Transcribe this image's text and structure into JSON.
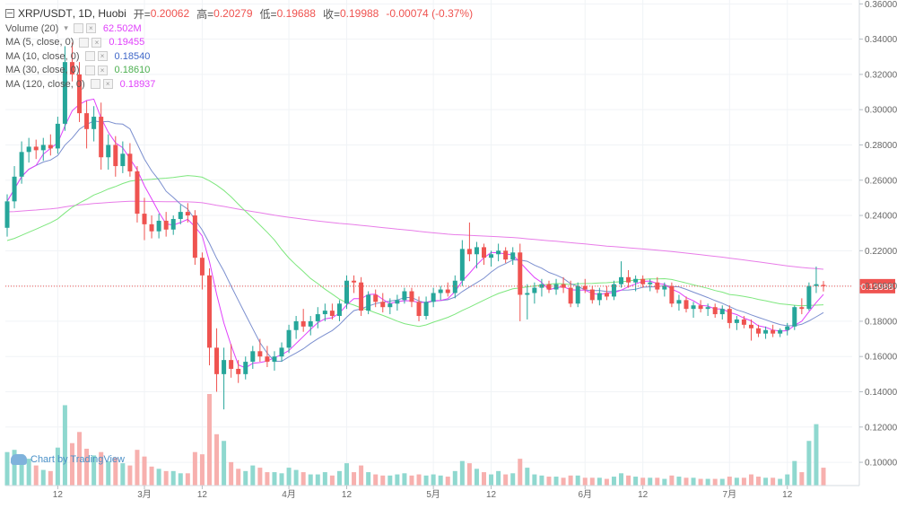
{
  "header": {
    "symbol": "XRP/USDT",
    "interval": "1D",
    "exchange": "Huobi",
    "open_label": "开=",
    "open": "0.20062",
    "high_label": "高=",
    "high": "0.20279",
    "low_label": "低=",
    "low": "0.19688",
    "close_label": "收=",
    "close": "0.19988",
    "change": "-0.00074 (-0.37%)"
  },
  "indicators": [
    {
      "label": "Volume (20)",
      "value": "62.502M",
      "color": "#e040fb"
    },
    {
      "label": "MA (5, close, 0)",
      "value": "0.19455",
      "color": "#e040fb"
    },
    {
      "label": "MA (10, close, 0)",
      "value": "0.18540",
      "color": "#3f67c8"
    },
    {
      "label": "MA (30, close, 0)",
      "value": "0.18610",
      "color": "#4caf50"
    },
    {
      "label": "MA (120, close, 0)",
      "value": "0.18937",
      "color": "#e040fb"
    }
  ],
  "watermark": "Chart by TradingView",
  "price_tag": "0.19988",
  "chart_data": {
    "type": "candlestick",
    "y_ticks": [
      "0.36000",
      "0.34000",
      "0.32000",
      "0.30000",
      "0.28000",
      "0.26000",
      "0.24000",
      "0.22000",
      "0.20000",
      "0.18000",
      "0.16000",
      "0.14000",
      "0.12000",
      "0.10000"
    ],
    "ylim": [
      0.0868,
      0.3622
    ],
    "x_ticks": [
      {
        "label": "12",
        "index": 7
      },
      {
        "label": "3月",
        "index": 19
      },
      {
        "label": "12",
        "index": 27
      },
      {
        "label": "4月",
        "index": 39
      },
      {
        "label": "12",
        "index": 47
      },
      {
        "label": "5月",
        "index": 59
      },
      {
        "label": "12",
        "index": 67
      },
      {
        "label": "6月",
        "index": 80
      },
      {
        "label": "12",
        "index": 88
      },
      {
        "label": "7月",
        "index": 100
      },
      {
        "label": "12",
        "index": 108
      }
    ],
    "colors": {
      "up": "#26a69a",
      "down": "#ef5350",
      "up_volume": "#8fd8cf",
      "down_volume": "#f7b0ae",
      "ma5": "#e040fb",
      "ma10": "#7b8fcf",
      "ma30": "#7ee77e",
      "ma120": "#e87de8"
    },
    "last_price": 0.19988,
    "candles": [
      {
        "o": 0.233,
        "h": 0.252,
        "l": 0.228,
        "c": 0.248,
        "v": 30
      },
      {
        "o": 0.248,
        "h": 0.268,
        "l": 0.244,
        "c": 0.262,
        "v": 32
      },
      {
        "o": 0.262,
        "h": 0.282,
        "l": 0.258,
        "c": 0.276,
        "v": 28
      },
      {
        "o": 0.276,
        "h": 0.284,
        "l": 0.27,
        "c": 0.279,
        "v": 24
      },
      {
        "o": 0.279,
        "h": 0.283,
        "l": 0.272,
        "c": 0.277,
        "v": 18
      },
      {
        "o": 0.277,
        "h": 0.284,
        "l": 0.271,
        "c": 0.28,
        "v": 14
      },
      {
        "o": 0.28,
        "h": 0.286,
        "l": 0.274,
        "c": 0.278,
        "v": 13
      },
      {
        "o": 0.278,
        "h": 0.296,
        "l": 0.275,
        "c": 0.292,
        "v": 34
      },
      {
        "o": 0.292,
        "h": 0.336,
        "l": 0.288,
        "c": 0.327,
        "v": 72
      },
      {
        "o": 0.327,
        "h": 0.338,
        "l": 0.316,
        "c": 0.32,
        "v": 38
      },
      {
        "o": 0.32,
        "h": 0.327,
        "l": 0.293,
        "c": 0.298,
        "v": 48
      },
      {
        "o": 0.298,
        "h": 0.305,
        "l": 0.278,
        "c": 0.289,
        "v": 33
      },
      {
        "o": 0.289,
        "h": 0.302,
        "l": 0.282,
        "c": 0.296,
        "v": 27
      },
      {
        "o": 0.296,
        "h": 0.304,
        "l": 0.266,
        "c": 0.273,
        "v": 30
      },
      {
        "o": 0.273,
        "h": 0.286,
        "l": 0.266,
        "c": 0.28,
        "v": 22
      },
      {
        "o": 0.28,
        "h": 0.285,
        "l": 0.262,
        "c": 0.268,
        "v": 25
      },
      {
        "o": 0.268,
        "h": 0.282,
        "l": 0.264,
        "c": 0.275,
        "v": 20
      },
      {
        "o": 0.275,
        "h": 0.281,
        "l": 0.262,
        "c": 0.265,
        "v": 18
      },
      {
        "o": 0.265,
        "h": 0.268,
        "l": 0.236,
        "c": 0.241,
        "v": 32
      },
      {
        "o": 0.241,
        "h": 0.25,
        "l": 0.226,
        "c": 0.235,
        "v": 26
      },
      {
        "o": 0.235,
        "h": 0.24,
        "l": 0.227,
        "c": 0.231,
        "v": 17
      },
      {
        "o": 0.231,
        "h": 0.241,
        "l": 0.227,
        "c": 0.237,
        "v": 15
      },
      {
        "o": 0.237,
        "h": 0.242,
        "l": 0.228,
        "c": 0.232,
        "v": 13
      },
      {
        "o": 0.232,
        "h": 0.24,
        "l": 0.229,
        "c": 0.238,
        "v": 13
      },
      {
        "o": 0.238,
        "h": 0.246,
        "l": 0.235,
        "c": 0.242,
        "v": 11
      },
      {
        "o": 0.242,
        "h": 0.247,
        "l": 0.236,
        "c": 0.24,
        "v": 11
      },
      {
        "o": 0.24,
        "h": 0.243,
        "l": 0.212,
        "c": 0.216,
        "v": 30
      },
      {
        "o": 0.216,
        "h": 0.219,
        "l": 0.198,
        "c": 0.206,
        "v": 28
      },
      {
        "o": 0.206,
        "h": 0.21,
        "l": 0.155,
        "c": 0.165,
        "v": 82
      },
      {
        "o": 0.165,
        "h": 0.176,
        "l": 0.14,
        "c": 0.15,
        "v": 46
      },
      {
        "o": 0.15,
        "h": 0.165,
        "l": 0.13,
        "c": 0.158,
        "v": 40
      },
      {
        "o": 0.158,
        "h": 0.167,
        "l": 0.148,
        "c": 0.153,
        "v": 21
      },
      {
        "o": 0.153,
        "h": 0.158,
        "l": 0.145,
        "c": 0.15,
        "v": 15
      },
      {
        "o": 0.15,
        "h": 0.16,
        "l": 0.147,
        "c": 0.157,
        "v": 13
      },
      {
        "o": 0.157,
        "h": 0.166,
        "l": 0.153,
        "c": 0.163,
        "v": 18
      },
      {
        "o": 0.163,
        "h": 0.17,
        "l": 0.157,
        "c": 0.16,
        "v": 16
      },
      {
        "o": 0.16,
        "h": 0.166,
        "l": 0.154,
        "c": 0.157,
        "v": 12
      },
      {
        "o": 0.157,
        "h": 0.163,
        "l": 0.152,
        "c": 0.16,
        "v": 12
      },
      {
        "o": 0.16,
        "h": 0.168,
        "l": 0.157,
        "c": 0.165,
        "v": 11
      },
      {
        "o": 0.165,
        "h": 0.178,
        "l": 0.162,
        "c": 0.175,
        "v": 16
      },
      {
        "o": 0.175,
        "h": 0.183,
        "l": 0.17,
        "c": 0.18,
        "v": 14
      },
      {
        "o": 0.18,
        "h": 0.187,
        "l": 0.174,
        "c": 0.177,
        "v": 12
      },
      {
        "o": 0.177,
        "h": 0.183,
        "l": 0.172,
        "c": 0.18,
        "v": 10
      },
      {
        "o": 0.18,
        "h": 0.188,
        "l": 0.176,
        "c": 0.184,
        "v": 10
      },
      {
        "o": 0.184,
        "h": 0.19,
        "l": 0.18,
        "c": 0.186,
        "v": 12
      },
      {
        "o": 0.186,
        "h": 0.19,
        "l": 0.181,
        "c": 0.183,
        "v": 9
      },
      {
        "o": 0.183,
        "h": 0.192,
        "l": 0.18,
        "c": 0.19,
        "v": 13
      },
      {
        "o": 0.19,
        "h": 0.206,
        "l": 0.187,
        "c": 0.203,
        "v": 20
      },
      {
        "o": 0.203,
        "h": 0.206,
        "l": 0.196,
        "c": 0.202,
        "v": 12
      },
      {
        "o": 0.202,
        "h": 0.205,
        "l": 0.183,
        "c": 0.186,
        "v": 18
      },
      {
        "o": 0.186,
        "h": 0.197,
        "l": 0.184,
        "c": 0.195,
        "v": 12
      },
      {
        "o": 0.195,
        "h": 0.198,
        "l": 0.188,
        "c": 0.191,
        "v": 10
      },
      {
        "o": 0.191,
        "h": 0.196,
        "l": 0.185,
        "c": 0.188,
        "v": 9
      },
      {
        "o": 0.188,
        "h": 0.193,
        "l": 0.184,
        "c": 0.19,
        "v": 9
      },
      {
        "o": 0.19,
        "h": 0.195,
        "l": 0.186,
        "c": 0.192,
        "v": 10
      },
      {
        "o": 0.192,
        "h": 0.199,
        "l": 0.19,
        "c": 0.197,
        "v": 11
      },
      {
        "o": 0.197,
        "h": 0.199,
        "l": 0.188,
        "c": 0.191,
        "v": 9
      },
      {
        "o": 0.191,
        "h": 0.194,
        "l": 0.18,
        "c": 0.183,
        "v": 10
      },
      {
        "o": 0.183,
        "h": 0.194,
        "l": 0.181,
        "c": 0.191,
        "v": 9
      },
      {
        "o": 0.191,
        "h": 0.199,
        "l": 0.188,
        "c": 0.196,
        "v": 10
      },
      {
        "o": 0.196,
        "h": 0.2,
        "l": 0.192,
        "c": 0.198,
        "v": 9
      },
      {
        "o": 0.198,
        "h": 0.202,
        "l": 0.194,
        "c": 0.196,
        "v": 8
      },
      {
        "o": 0.196,
        "h": 0.206,
        "l": 0.193,
        "c": 0.203,
        "v": 13
      },
      {
        "o": 0.203,
        "h": 0.226,
        "l": 0.2,
        "c": 0.221,
        "v": 22
      },
      {
        "o": 0.221,
        "h": 0.236,
        "l": 0.214,
        "c": 0.218,
        "v": 20
      },
      {
        "o": 0.218,
        "h": 0.225,
        "l": 0.21,
        "c": 0.222,
        "v": 15
      },
      {
        "o": 0.222,
        "h": 0.224,
        "l": 0.212,
        "c": 0.216,
        "v": 12
      },
      {
        "o": 0.216,
        "h": 0.22,
        "l": 0.211,
        "c": 0.218,
        "v": 10
      },
      {
        "o": 0.218,
        "h": 0.224,
        "l": 0.214,
        "c": 0.22,
        "v": 13
      },
      {
        "o": 0.22,
        "h": 0.222,
        "l": 0.213,
        "c": 0.215,
        "v": 10
      },
      {
        "o": 0.215,
        "h": 0.222,
        "l": 0.212,
        "c": 0.219,
        "v": 11
      },
      {
        "o": 0.219,
        "h": 0.224,
        "l": 0.18,
        "c": 0.195,
        "v": 24
      },
      {
        "o": 0.195,
        "h": 0.201,
        "l": 0.181,
        "c": 0.196,
        "v": 16
      },
      {
        "o": 0.196,
        "h": 0.202,
        "l": 0.19,
        "c": 0.199,
        "v": 10
      },
      {
        "o": 0.199,
        "h": 0.204,
        "l": 0.194,
        "c": 0.201,
        "v": 9
      },
      {
        "o": 0.201,
        "h": 0.203,
        "l": 0.196,
        "c": 0.198,
        "v": 8
      },
      {
        "o": 0.198,
        "h": 0.204,
        "l": 0.195,
        "c": 0.201,
        "v": 8
      },
      {
        "o": 0.201,
        "h": 0.205,
        "l": 0.196,
        "c": 0.199,
        "v": 7
      },
      {
        "o": 0.199,
        "h": 0.203,
        "l": 0.188,
        "c": 0.19,
        "v": 9
      },
      {
        "o": 0.19,
        "h": 0.202,
        "l": 0.188,
        "c": 0.2,
        "v": 9
      },
      {
        "o": 0.2,
        "h": 0.204,
        "l": 0.196,
        "c": 0.198,
        "v": 7
      },
      {
        "o": 0.198,
        "h": 0.2,
        "l": 0.19,
        "c": 0.192,
        "v": 7
      },
      {
        "o": 0.192,
        "h": 0.199,
        "l": 0.189,
        "c": 0.196,
        "v": 7
      },
      {
        "o": 0.196,
        "h": 0.2,
        "l": 0.192,
        "c": 0.194,
        "v": 6
      },
      {
        "o": 0.194,
        "h": 0.203,
        "l": 0.192,
        "c": 0.201,
        "v": 8
      },
      {
        "o": 0.201,
        "h": 0.214,
        "l": 0.199,
        "c": 0.205,
        "v": 11
      },
      {
        "o": 0.205,
        "h": 0.209,
        "l": 0.199,
        "c": 0.202,
        "v": 9
      },
      {
        "o": 0.202,
        "h": 0.206,
        "l": 0.197,
        "c": 0.204,
        "v": 8
      },
      {
        "o": 0.204,
        "h": 0.206,
        "l": 0.199,
        "c": 0.201,
        "v": 7
      },
      {
        "o": 0.201,
        "h": 0.204,
        "l": 0.197,
        "c": 0.202,
        "v": 7
      },
      {
        "o": 0.202,
        "h": 0.205,
        "l": 0.196,
        "c": 0.198,
        "v": 7
      },
      {
        "o": 0.198,
        "h": 0.202,
        "l": 0.194,
        "c": 0.2,
        "v": 6
      },
      {
        "o": 0.2,
        "h": 0.202,
        "l": 0.188,
        "c": 0.19,
        "v": 9
      },
      {
        "o": 0.19,
        "h": 0.195,
        "l": 0.186,
        "c": 0.192,
        "v": 8
      },
      {
        "o": 0.192,
        "h": 0.194,
        "l": 0.185,
        "c": 0.187,
        "v": 7
      },
      {
        "o": 0.187,
        "h": 0.191,
        "l": 0.182,
        "c": 0.189,
        "v": 7
      },
      {
        "o": 0.189,
        "h": 0.192,
        "l": 0.185,
        "c": 0.187,
        "v": 6
      },
      {
        "o": 0.187,
        "h": 0.19,
        "l": 0.183,
        "c": 0.188,
        "v": 6
      },
      {
        "o": 0.188,
        "h": 0.19,
        "l": 0.182,
        "c": 0.184,
        "v": 6
      },
      {
        "o": 0.184,
        "h": 0.189,
        "l": 0.181,
        "c": 0.187,
        "v": 6
      },
      {
        "o": 0.187,
        "h": 0.189,
        "l": 0.176,
        "c": 0.179,
        "v": 8
      },
      {
        "o": 0.179,
        "h": 0.183,
        "l": 0.175,
        "c": 0.181,
        "v": 7
      },
      {
        "o": 0.181,
        "h": 0.183,
        "l": 0.176,
        "c": 0.178,
        "v": 7
      },
      {
        "o": 0.178,
        "h": 0.181,
        "l": 0.169,
        "c": 0.176,
        "v": 10
      },
      {
        "o": 0.176,
        "h": 0.178,
        "l": 0.171,
        "c": 0.173,
        "v": 8
      },
      {
        "o": 0.173,
        "h": 0.177,
        "l": 0.17,
        "c": 0.175,
        "v": 7
      },
      {
        "o": 0.175,
        "h": 0.178,
        "l": 0.171,
        "c": 0.173,
        "v": 7
      },
      {
        "o": 0.173,
        "h": 0.176,
        "l": 0.171,
        "c": 0.175,
        "v": 6
      },
      {
        "o": 0.175,
        "h": 0.179,
        "l": 0.172,
        "c": 0.177,
        "v": 10
      },
      {
        "o": 0.177,
        "h": 0.189,
        "l": 0.175,
        "c": 0.188,
        "v": 22
      },
      {
        "o": 0.188,
        "h": 0.193,
        "l": 0.184,
        "c": 0.187,
        "v": 12
      },
      {
        "o": 0.187,
        "h": 0.202,
        "l": 0.186,
        "c": 0.2,
        "v": 40
      },
      {
        "o": 0.2,
        "h": 0.211,
        "l": 0.196,
        "c": 0.201,
        "v": 55
      },
      {
        "o": 0.2006,
        "h": 0.2028,
        "l": 0.1969,
        "c": 0.1999,
        "v": 16
      }
    ]
  }
}
